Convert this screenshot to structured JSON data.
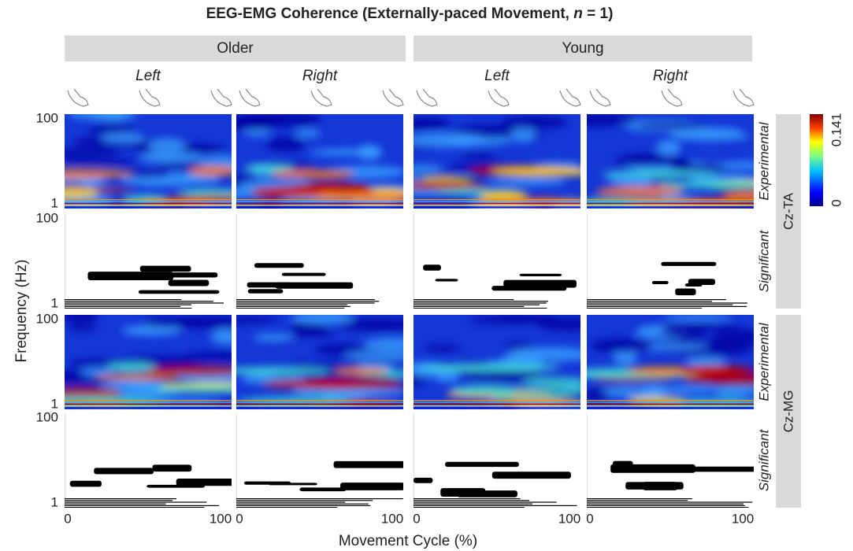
{
  "title_parts": [
    "EEG-EMG Coherence (Externally-paced Movement, ",
    "n",
    " = 1)"
  ],
  "groups": [
    {
      "label": "Older",
      "sides": [
        "Left",
        "Right"
      ]
    },
    {
      "label": "Young",
      "sides": [
        "Left",
        "Right"
      ]
    }
  ],
  "muscles": [
    {
      "label": "Cz-TA",
      "rows": [
        "Experimental",
        "Significant"
      ]
    },
    {
      "label": "Cz-MG",
      "rows": [
        "Experimental",
        "Significant"
      ]
    }
  ],
  "y_axis": {
    "label": "Frequency (Hz)",
    "ticks": [
      "100",
      "1"
    ]
  },
  "x_axis": {
    "label": "Movement Cycle (%)",
    "ticks": [
      "0",
      "100"
    ]
  },
  "colorbar": {
    "max": "0.141",
    "min": "0"
  }
}
